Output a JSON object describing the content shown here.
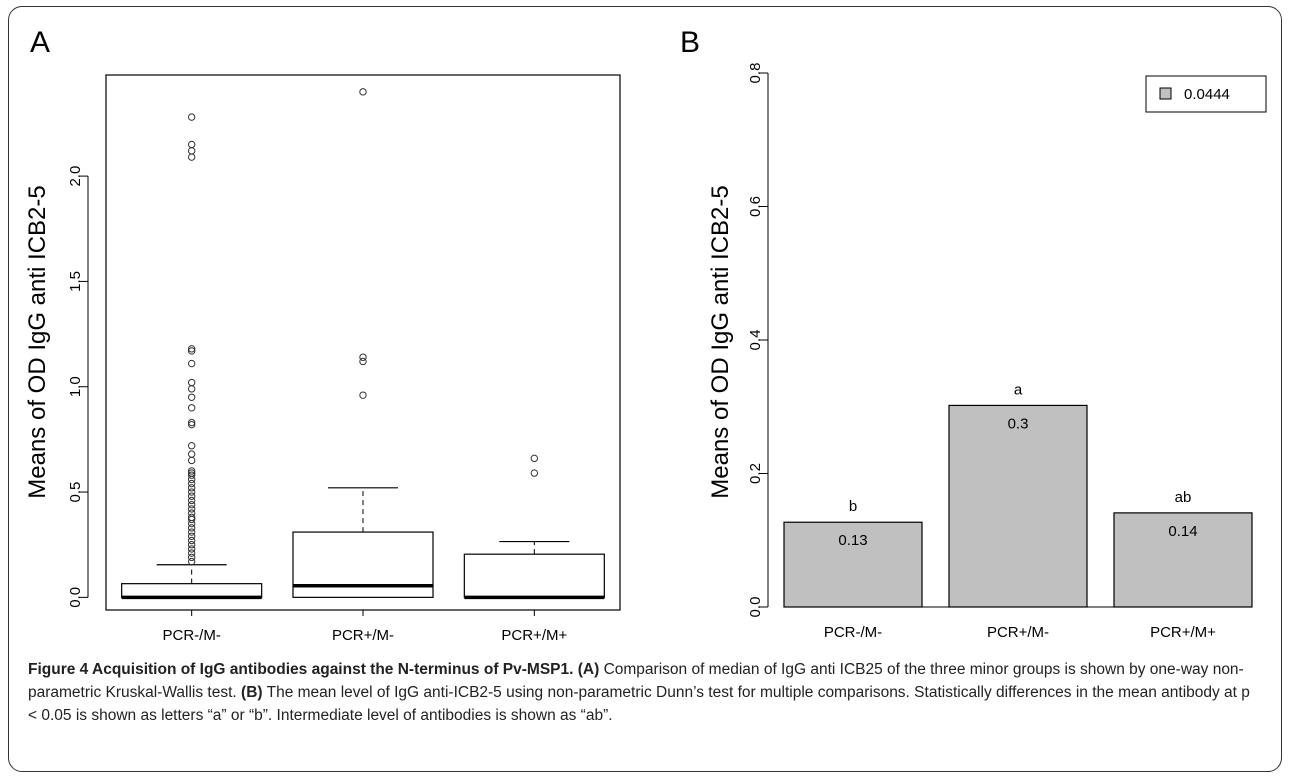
{
  "panels": {
    "a": "A",
    "b": "B"
  },
  "chart_data": [
    {
      "panel": "A",
      "type": "box",
      "ylabel": "Means of OD  IgG anti  ICB2-5",
      "ylim": [
        -0.06,
        2.48
      ],
      "yticks": [
        "0.0",
        "0.5",
        "1.0",
        "1.5",
        "2.0"
      ],
      "yticks_values": [
        0,
        0.5,
        1.0,
        1.5,
        2.0
      ],
      "categories": [
        "PCR-/M-",
        "PCR+/M-",
        "PCR+/M+"
      ],
      "boxes": [
        {
          "category": "PCR-/M-",
          "whisker_low": 0,
          "q1": 0,
          "median": 0,
          "q3": 0.065,
          "whisker_high": 0.155,
          "outliers": [
            2.28,
            2.15,
            2.12,
            2.09,
            1.18,
            1.17,
            1.11,
            1.02,
            0.99,
            0.95,
            0.9,
            0.83,
            0.82,
            0.72,
            0.68,
            0.65,
            0.6,
            0.59,
            0.58,
            0.56,
            0.54,
            0.52,
            0.5,
            0.48,
            0.46,
            0.44,
            0.42,
            0.4,
            0.38,
            0.37,
            0.35,
            0.33,
            0.31,
            0.29,
            0.27,
            0.25,
            0.23,
            0.21,
            0.19,
            0.17
          ]
        },
        {
          "category": "PCR+/M-",
          "whisker_low": 0,
          "q1": 0,
          "median": 0.055,
          "q3": 0.31,
          "whisker_high": 0.52,
          "outliers": [
            2.4,
            1.14,
            1.12,
            0.96
          ]
        },
        {
          "category": "PCR+/M+",
          "whisker_low": 0,
          "q1": 0,
          "median": 0,
          "q3": 0.205,
          "whisker_high": 0.265,
          "outliers": [
            0.66,
            0.59
          ]
        }
      ]
    },
    {
      "panel": "B",
      "type": "bar",
      "ylabel": "Means of OD  IgG anti  ICB2-5",
      "ylim": [
        0,
        0.8
      ],
      "yticks": [
        "0.0",
        "0.2",
        "0.4",
        "0.6",
        "0.8"
      ],
      "yticks_values": [
        0,
        0.2,
        0.4,
        0.6,
        0.8
      ],
      "categories": [
        "PCR-/M-",
        "PCR+/M-",
        "PCR+/M+"
      ],
      "values": [
        0.127,
        0.302,
        0.141
      ],
      "value_labels": [
        "0.13",
        "0.3",
        "0.14"
      ],
      "letters": [
        "b",
        "a",
        "ab"
      ],
      "bar_color": "#c0c0c0",
      "legend": {
        "label": "0.0444",
        "placement": "top-right"
      }
    }
  ],
  "caption": {
    "bold": "Figure 4 Acquisition of IgG antibodies against the N-terminus of Pv-MSP1.",
    "a_tag": "(A)",
    "a_text": "Comparison of median of IgG anti ICB25 of the three minor groups is shown by one-way non-parametric Kruskal-Wallis test.",
    "b_tag": "(B)",
    "b_text": "The mean level of IgG anti-ICB2-5 using non-parametric Dunn’s test for multiple comparisons. Statistically differences in the mean antibody at p < 0.05 is shown as letters “a” or “b”. Intermediate level of antibodies is shown as “ab”."
  }
}
